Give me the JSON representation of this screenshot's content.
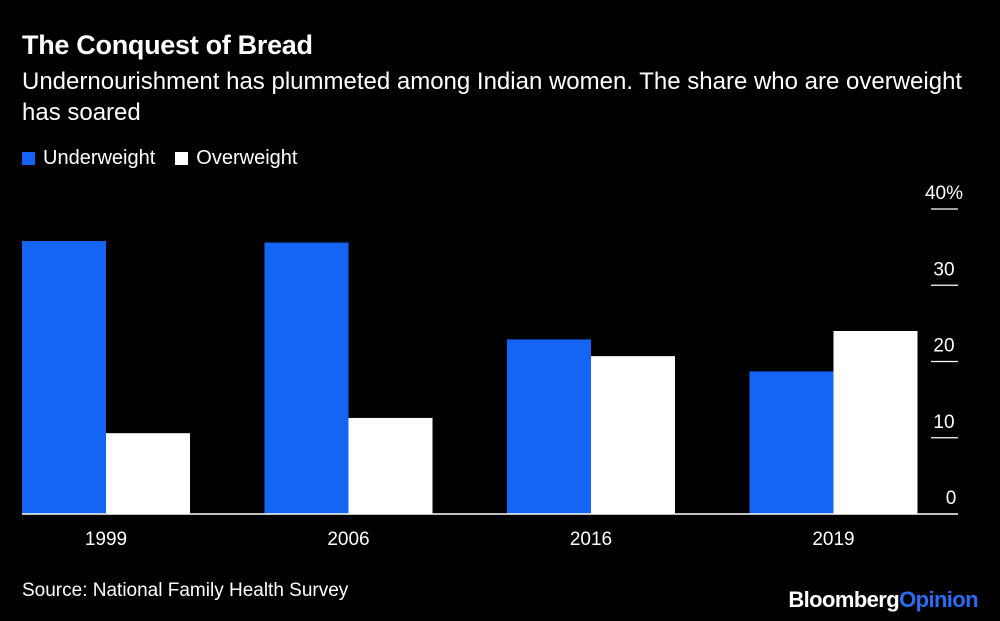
{
  "header": {
    "title": "The Conquest of Bread",
    "subtitle": "Undernourishment has plummeted among Indian women. The share who are overweight has soared"
  },
  "footer": {
    "source": "Source: National Family Health Survey",
    "brand_primary": "Bloomberg",
    "brand_secondary": "Opinion"
  },
  "colors": {
    "underweight": "#1565f5",
    "overweight": "#ffffff",
    "background": "#000000",
    "axis": "#ffffff"
  },
  "chart_data": {
    "type": "bar",
    "categories": [
      "1999",
      "2006",
      "2016",
      "2019"
    ],
    "series": [
      {
        "name": "Underweight",
        "values": [
          35.8,
          35.6,
          22.9,
          18.7
        ]
      },
      {
        "name": "Overweight",
        "values": [
          10.6,
          12.6,
          20.7,
          24.0
        ]
      }
    ],
    "ylim": [
      0,
      40
    ],
    "yticks": [
      0,
      10,
      20,
      30,
      40
    ],
    "ytick_labels": [
      "0",
      "10",
      "20",
      "30",
      "40%"
    ],
    "y_axis_side": "right",
    "legend_placement": "top-left",
    "grid": false
  }
}
